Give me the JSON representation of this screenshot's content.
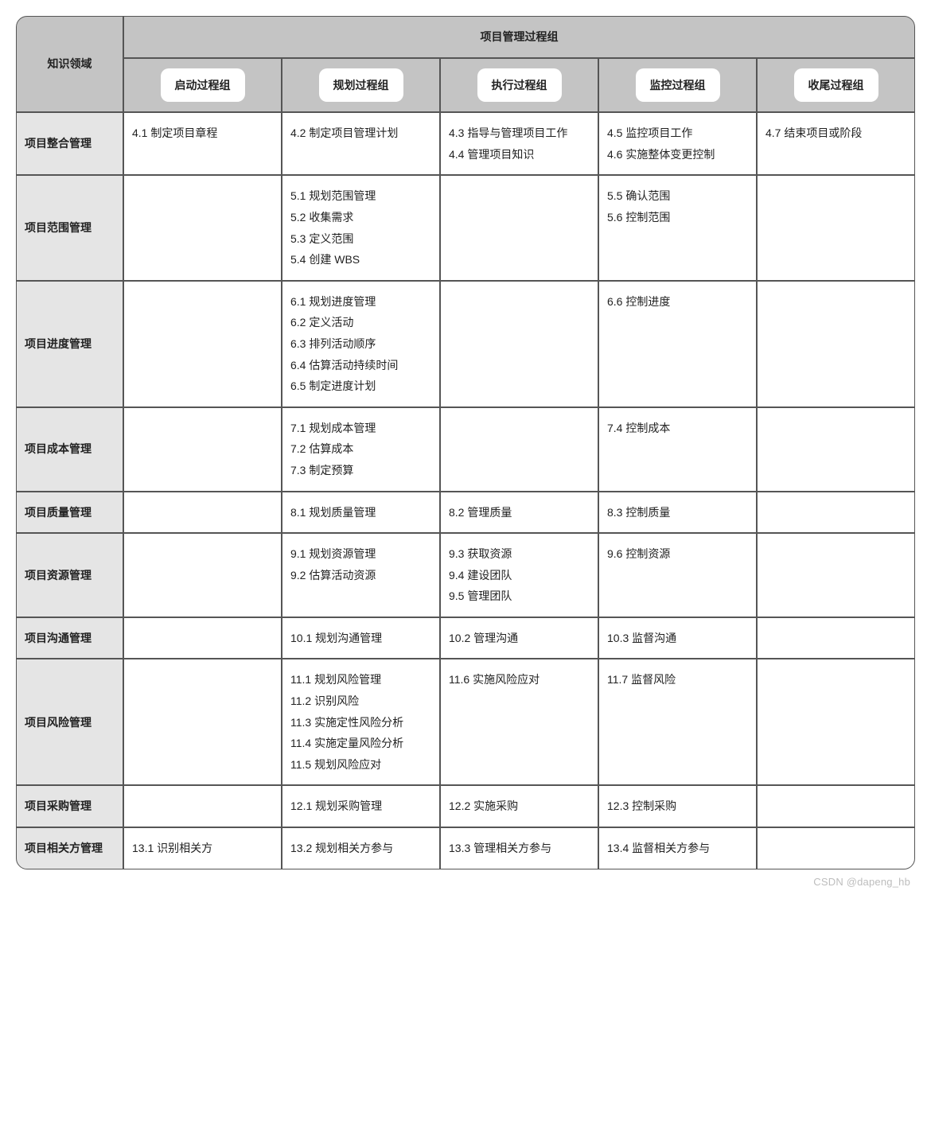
{
  "type": "table",
  "style": {
    "header_bg": "#c4c4c4",
    "row_header_bg": "#e5e5e5",
    "pill_bg": "#ffffff",
    "border_color": "#555555",
    "text_color": "#222222",
    "body_bg": "#ffffff",
    "watermark_color": "#bdbdbd",
    "font_size_body": 14,
    "font_size_header": 14,
    "corner_radius": 14,
    "pill_radius": 10
  },
  "columns": {
    "knowledge": "知识领域",
    "process_group_header": "项目管理过程组",
    "groups": [
      "启动过程组",
      "规划过程组",
      "执行过程组",
      "监控过程组",
      "收尾过程组"
    ]
  },
  "rows": [
    {
      "name": "项目整合管理",
      "cells": [
        [
          "4.1 制定项目章程"
        ],
        [
          "4.2 制定项目管理计划"
        ],
        [
          "4.3 指导与管理项目工作",
          "4.4 管理项目知识"
        ],
        [
          "4.5 监控项目工作",
          "4.6 实施整体变更控制"
        ],
        [
          "4.7 结束项目或阶段"
        ]
      ]
    },
    {
      "name": "项目范围管理",
      "cells": [
        [],
        [
          "5.1 规划范围管理",
          "5.2 收集需求",
          "5.3 定义范围",
          "5.4 创建 WBS"
        ],
        [],
        [
          "5.5 确认范围",
          "5.6 控制范围"
        ],
        []
      ]
    },
    {
      "name": "项目进度管理",
      "cells": [
        [],
        [
          "6.1 规划进度管理",
          "6.2 定义活动",
          "6.3 排列活动顺序",
          "6.4 估算活动持续时间",
          "6.5 制定进度计划"
        ],
        [],
        [
          "6.6 控制进度"
        ],
        []
      ]
    },
    {
      "name": "项目成本管理",
      "cells": [
        [],
        [
          "7.1 规划成本管理",
          "7.2 估算成本",
          "7.3 制定预算"
        ],
        [],
        [
          "7.4 控制成本"
        ],
        []
      ]
    },
    {
      "name": "项目质量管理",
      "cells": [
        [],
        [
          "8.1 规划质量管理"
        ],
        [
          "8.2 管理质量"
        ],
        [
          "8.3 控制质量"
        ],
        []
      ]
    },
    {
      "name": "项目资源管理",
      "cells": [
        [],
        [
          "9.1 规划资源管理",
          "9.2 估算活动资源"
        ],
        [
          "9.3 获取资源",
          "9.4 建设团队",
          "9.5 管理团队"
        ],
        [
          "9.6 控制资源"
        ],
        []
      ]
    },
    {
      "name": "项目沟通管理",
      "cells": [
        [],
        [
          "10.1 规划沟通管理"
        ],
        [
          "10.2 管理沟通"
        ],
        [
          "10.3 监督沟通"
        ],
        []
      ]
    },
    {
      "name": "项目风险管理",
      "cells": [
        [],
        [
          "11.1 规划风险管理",
          "11.2 识别风险",
          "11.3 实施定性风险分析",
          "11.4 实施定量风险分析",
          "11.5 规划风险应对"
        ],
        [
          "11.6 实施风险应对"
        ],
        [
          "11.7 监督风险"
        ],
        []
      ]
    },
    {
      "name": "项目采购管理",
      "cells": [
        [],
        [
          "12.1 规划采购管理"
        ],
        [
          "12.2 实施采购"
        ],
        [
          "12.3 控制采购"
        ],
        []
      ]
    },
    {
      "name": "项目相关方管理",
      "cells": [
        [
          "13.1 识别相关方"
        ],
        [
          "13.2 规划相关方参与"
        ],
        [
          "13.3 管理相关方参与"
        ],
        [
          "13.4 监督相关方参与"
        ],
        []
      ]
    }
  ],
  "watermark": "CSDN @dapeng_hb"
}
